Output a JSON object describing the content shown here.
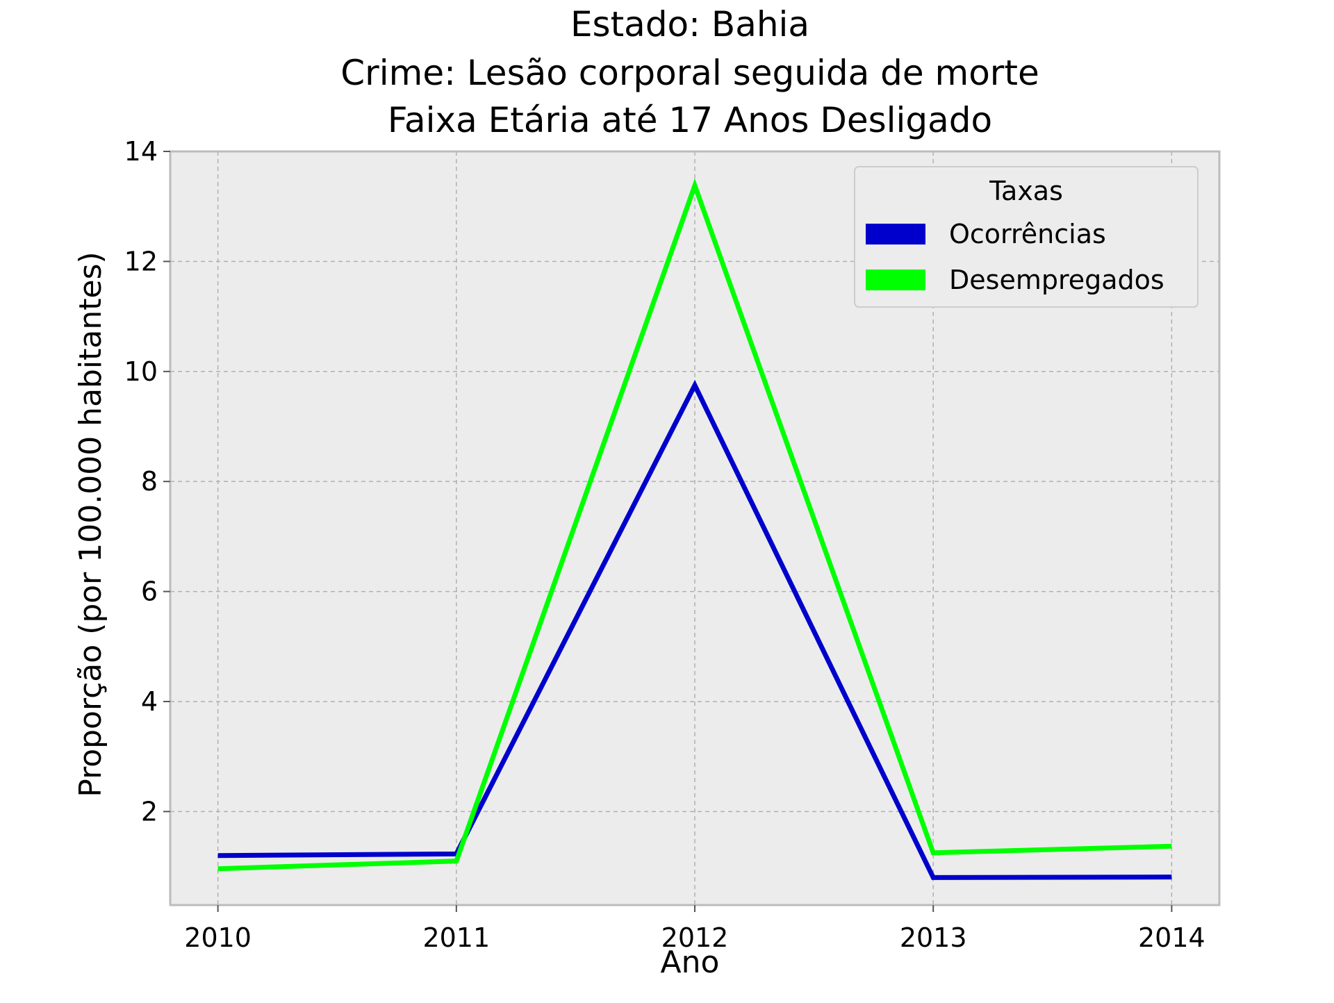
{
  "chart_data": {
    "type": "line",
    "title": {
      "line1": "Estado: Bahia",
      "line2": "Crime: Lesão corporal seguida de morte",
      "line3": "Faixa Etária até 17 Anos   Desligado"
    },
    "xlabel": "Ano",
    "ylabel": "Proporção (por 100.000 habitantes)",
    "x": [
      2010,
      2011,
      2012,
      2013,
      2014
    ],
    "x_tick_labels": [
      "2010",
      "2011",
      "2012",
      "2013",
      "2014"
    ],
    "y_ticks": [
      2,
      4,
      6,
      8,
      10,
      12,
      14
    ],
    "y_tick_labels": [
      "2",
      "4",
      "6",
      "8",
      "10",
      "12",
      "14"
    ],
    "xlim": [
      2009.8,
      2014.2
    ],
    "ylim": [
      0.3,
      14.0
    ],
    "grid": true,
    "legend": {
      "title": "Taxas",
      "placement": "top-right"
    },
    "series": [
      {
        "name": "Ocorrências",
        "color": "#0000cc",
        "values": [
          1.2,
          1.23,
          9.75,
          0.8,
          0.81
        ]
      },
      {
        "name": "Desempregados",
        "color": "#00ff00",
        "values": [
          0.96,
          1.1,
          13.38,
          1.25,
          1.37
        ]
      }
    ],
    "colors": {
      "plot_background": "#ececec",
      "grid": "#b0b0b0",
      "frame": "#bcbcbc"
    }
  }
}
